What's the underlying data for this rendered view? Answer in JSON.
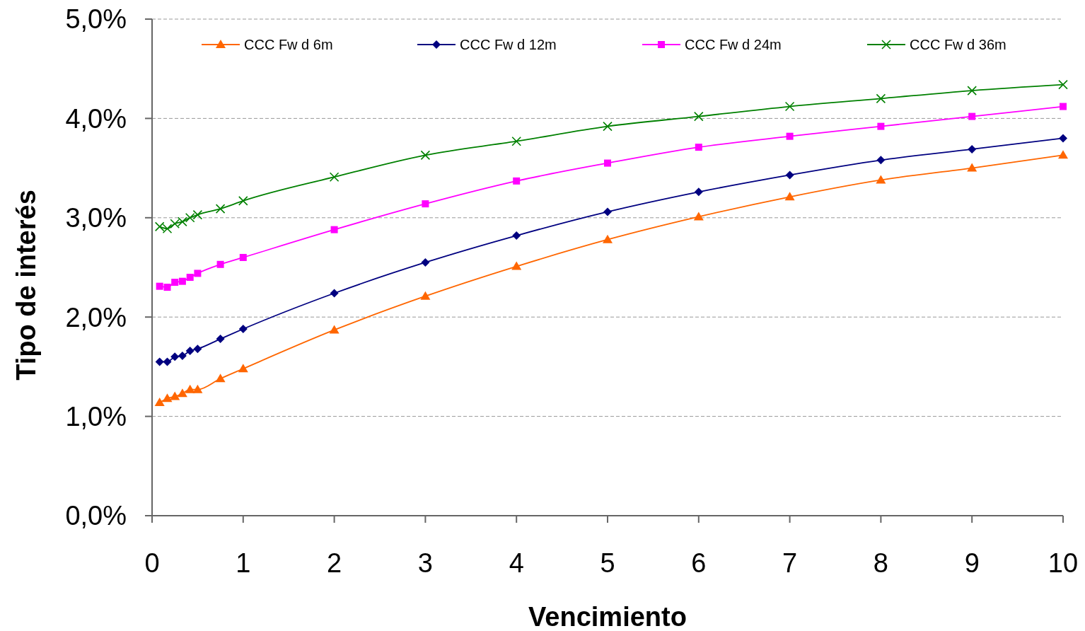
{
  "chart_data": {
    "type": "line",
    "xlabel": "Vencimiento",
    "ylabel": "Tipo de interés",
    "x": [
      0.083,
      0.167,
      0.25,
      0.333,
      0.417,
      0.5,
      0.75,
      1,
      2,
      3,
      4,
      5,
      6,
      7,
      8,
      9,
      10
    ],
    "xlim": [
      0,
      10
    ],
    "xticks": [
      0,
      1,
      2,
      3,
      4,
      5,
      6,
      7,
      8,
      9,
      10
    ],
    "ylim": [
      0,
      5
    ],
    "yticks": [
      {
        "value": 0,
        "label": "0,0%"
      },
      {
        "value": 1,
        "label": "1,0%"
      },
      {
        "value": 2,
        "label": "2,0%"
      },
      {
        "value": 3,
        "label": "3,0%"
      },
      {
        "value": 4,
        "label": "4,0%"
      },
      {
        "value": 5,
        "label": "5,0%"
      }
    ],
    "grid": "y",
    "legend": "top",
    "series": [
      {
        "name": "CCC Fw d 6m",
        "color": "#ff6600",
        "marker": "triangle",
        "values": [
          1.14,
          1.18,
          1.2,
          1.23,
          1.27,
          1.27,
          1.38,
          1.48,
          1.87,
          2.21,
          2.51,
          2.78,
          3.01,
          3.21,
          3.38,
          3.5,
          3.63
        ]
      },
      {
        "name": "CCC Fw d 12m",
        "color": "#000080",
        "marker": "diamond",
        "values": [
          1.55,
          1.55,
          1.6,
          1.61,
          1.66,
          1.68,
          1.78,
          1.88,
          2.24,
          2.55,
          2.82,
          3.06,
          3.26,
          3.43,
          3.58,
          3.69,
          3.8
        ]
      },
      {
        "name": "CCC Fw d 24m",
        "color": "#ff00ff",
        "marker": "square",
        "values": [
          2.31,
          2.3,
          2.35,
          2.36,
          2.4,
          2.44,
          2.53,
          2.6,
          2.88,
          3.14,
          3.37,
          3.55,
          3.71,
          3.82,
          3.92,
          4.02,
          4.12
        ]
      },
      {
        "name": "CCC Fw d 36m",
        "color": "#008000",
        "marker": "cross",
        "values": [
          2.91,
          2.89,
          2.94,
          2.96,
          3.0,
          3.03,
          3.09,
          3.17,
          3.41,
          3.63,
          3.77,
          3.92,
          4.02,
          4.12,
          4.2,
          4.28,
          4.34
        ]
      }
    ]
  }
}
